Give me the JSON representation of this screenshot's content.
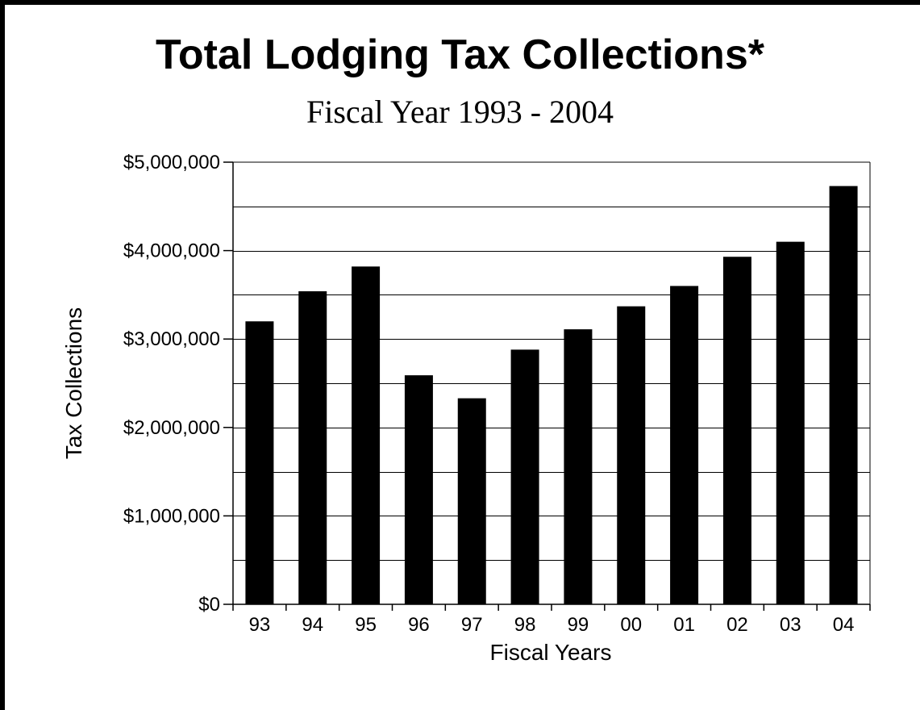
{
  "chart_data": {
    "type": "bar",
    "title": "Total Lodging Tax Collections*",
    "subtitle": "Fiscal Year 1993 - 2004",
    "xlabel": "Fiscal Years",
    "ylabel": "Tax Collections",
    "categories": [
      "93",
      "94",
      "95",
      "96",
      "97",
      "98",
      "99",
      "00",
      "01",
      "02",
      "03",
      "04"
    ],
    "values": [
      3200000,
      3540000,
      3820000,
      2590000,
      2330000,
      2880000,
      3110000,
      3370000,
      3600000,
      3930000,
      4100000,
      4730000
    ],
    "ylim": [
      0,
      5000000
    ],
    "y_ticks": [
      "$0",
      "$1,000,000",
      "$2,000,000",
      "$3,000,000",
      "$4,000,000",
      "$5,000,000"
    ],
    "grid": true,
    "bar_color": "#000000"
  }
}
